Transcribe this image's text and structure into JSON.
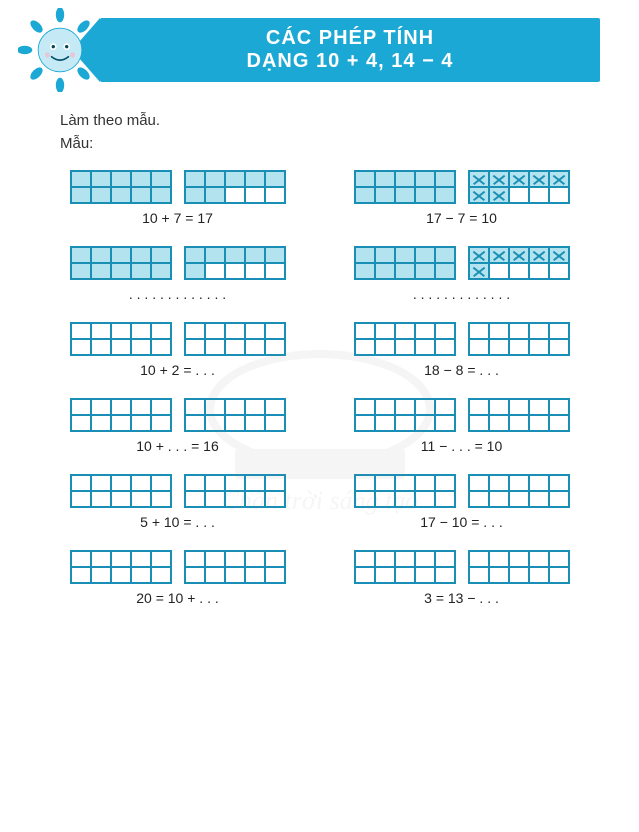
{
  "header": {
    "title_line1": "CÁC PHÉP TÍNH",
    "title_line2": "DẠNG 10 + 4, 14 − 4"
  },
  "instructions": {
    "line1": "Làm theo mẫu.",
    "line2": "Mẫu:"
  },
  "colors": {
    "banner": "#1ba8d4",
    "cell_border": "#1a8fb5",
    "cell_fill": "#b4e3f0",
    "text": "#222222",
    "sun_face": "#c5eaf5",
    "sun_petal": "#1ba8d4"
  },
  "rows": [
    {
      "left": {
        "frame1": "ffffffffff",
        "frame2": "fffffffeee",
        "eq": "10 + 7 = 17"
      },
      "right": {
        "frame1": "ffffffffff",
        "frame2": "xxxxxxxeee",
        "eq": "17 − 7 = 10"
      }
    },
    {
      "left": {
        "frame1": "ffffffffff",
        "frame2": "ffffffeeee",
        "eq": ". . . . . . . . . . . . ."
      },
      "right": {
        "frame1": "ffffffffff",
        "frame2": "xxxxxxeeee",
        "eq": ". . . . . . . . . . . . ."
      }
    },
    {
      "left": {
        "frame1": "eeeeeeeeee",
        "frame2": "eeeeeeeeee",
        "eq": "10 + 2 = . . ."
      },
      "right": {
        "frame1": "eeeeeeeeee",
        "frame2": "eeeeeeeeee",
        "eq": "18 − 8 = . . ."
      }
    },
    {
      "left": {
        "frame1": "eeeeeeeeee",
        "frame2": "eeeeeeeeee",
        "eq": "10 + . . . = 16"
      },
      "right": {
        "frame1": "eeeeeeeeee",
        "frame2": "eeeeeeeeee",
        "eq": "11 − . . . = 10"
      }
    },
    {
      "left": {
        "frame1": "eeeeeeeeee",
        "frame2": "eeeeeeeeee",
        "eq": "5 + 10 = . . ."
      },
      "right": {
        "frame1": "eeeeeeeeee",
        "frame2": "eeeeeeeeee",
        "eq": "17 − 10 = . . ."
      }
    },
    {
      "left": {
        "frame1": "eeeeeeeeee",
        "frame2": "eeeeeeeeee",
        "eq": "20 = 10 + . . ."
      },
      "right": {
        "frame1": "eeeeeeeeee",
        "frame2": "eeeeeeeeee",
        "eq": "3 = 13 − . . ."
      }
    }
  ]
}
